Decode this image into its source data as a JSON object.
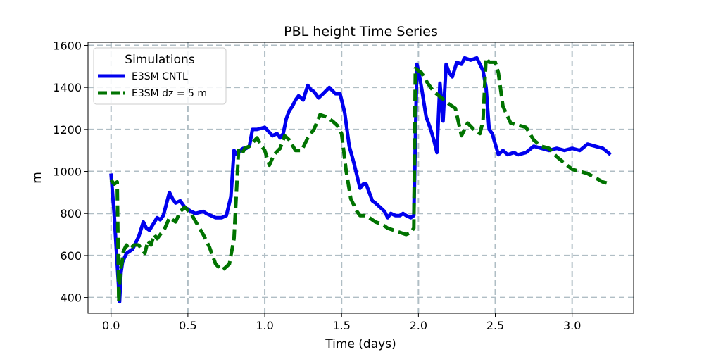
{
  "chart_data": {
    "type": "line",
    "title": "PBL height Time Series",
    "xlabel": "Time (days)",
    "ylabel": "m",
    "xlim": [
      -0.15,
      3.4
    ],
    "ylim": [
      325,
      1615
    ],
    "xticks": [
      0.0,
      0.5,
      1.0,
      1.5,
      2.0,
      2.5,
      3.0
    ],
    "xtick_labels": [
      "0.0",
      "0.5",
      "1.0",
      "1.5",
      "2.0",
      "2.5",
      "3.0"
    ],
    "yticks": [
      400,
      600,
      800,
      1000,
      1200,
      1400,
      1600
    ],
    "ytick_labels": [
      "400",
      "600",
      "800",
      "1000",
      "1200",
      "1400",
      "1600"
    ],
    "grid": true,
    "legend": {
      "title": "Simulations",
      "placement": "top-left"
    },
    "series": [
      {
        "name": "E3SM CNTL",
        "color": "#0000ee",
        "style": "solid",
        "x": [
          0.0,
          0.02,
          0.04,
          0.055,
          0.065,
          0.075,
          0.1,
          0.14,
          0.18,
          0.21,
          0.23,
          0.25,
          0.3,
          0.32,
          0.34,
          0.38,
          0.4,
          0.42,
          0.45,
          0.48,
          0.5,
          0.52,
          0.55,
          0.6,
          0.62,
          0.65,
          0.68,
          0.72,
          0.75,
          0.78,
          0.8,
          0.82,
          0.84,
          0.86,
          0.88,
          0.9,
          0.92,
          0.95,
          1.0,
          1.05,
          1.08,
          1.1,
          1.12,
          1.14,
          1.16,
          1.18,
          1.2,
          1.22,
          1.25,
          1.28,
          1.3,
          1.32,
          1.35,
          1.38,
          1.42,
          1.46,
          1.49,
          1.52,
          1.55,
          1.58,
          1.62,
          1.64,
          1.66,
          1.68,
          1.7,
          1.72,
          1.75,
          1.78,
          1.8,
          1.82,
          1.85,
          1.88,
          1.9,
          1.92,
          1.95,
          1.97,
          1.99,
          2.0,
          2.02,
          2.05,
          2.08,
          2.1,
          2.12,
          2.14,
          2.16,
          2.18,
          2.2,
          2.22,
          2.25,
          2.28,
          2.3,
          2.34,
          2.38,
          2.42,
          2.44,
          2.46,
          2.48,
          2.5,
          2.52,
          2.55,
          2.58,
          2.62,
          2.65,
          2.7,
          2.75,
          2.8,
          2.85,
          2.9,
          2.95,
          3.0,
          3.05,
          3.1,
          3.15,
          3.2,
          3.25
        ],
        "y": [
          990,
          800,
          560,
          380,
          520,
          570,
          610,
          630,
          690,
          760,
          730,
          720,
          780,
          770,
          790,
          900,
          870,
          850,
          860,
          830,
          820,
          810,
          800,
          810,
          800,
          790,
          780,
          780,
          790,
          880,
          1100,
          1080,
          1100,
          1110,
          1110,
          1120,
          1200,
          1200,
          1210,
          1170,
          1180,
          1160,
          1180,
          1250,
          1290,
          1310,
          1340,
          1360,
          1340,
          1410,
          1390,
          1380,
          1350,
          1370,
          1400,
          1370,
          1370,
          1280,
          1120,
          1040,
          920,
          940,
          940,
          900,
          860,
          850,
          830,
          810,
          780,
          800,
          790,
          790,
          800,
          790,
          780,
          790,
          1510,
          1480,
          1400,
          1260,
          1200,
          1150,
          1090,
          1420,
          1240,
          1510,
          1470,
          1450,
          1520,
          1510,
          1540,
          1530,
          1540,
          1480,
          1400,
          1200,
          1180,
          1130,
          1080,
          1100,
          1080,
          1090,
          1080,
          1090,
          1120,
          1110,
          1100,
          1110,
          1100,
          1110,
          1100,
          1130,
          1120,
          1110,
          1080
        ]
      },
      {
        "name": "E3SM dz = 5 m",
        "color": "#007300",
        "style": "dashed",
        "x": [
          0.0,
          0.02,
          0.04,
          0.05,
          0.06,
          0.07,
          0.08,
          0.1,
          0.12,
          0.15,
          0.18,
          0.22,
          0.24,
          0.26,
          0.28,
          0.3,
          0.33,
          0.35,
          0.38,
          0.42,
          0.45,
          0.48,
          0.52,
          0.56,
          0.6,
          0.64,
          0.68,
          0.72,
          0.74,
          0.77,
          0.8,
          0.83,
          0.85,
          0.87,
          0.9,
          0.95,
          0.98,
          1.0,
          1.03,
          1.06,
          1.1,
          1.13,
          1.16,
          1.2,
          1.24,
          1.28,
          1.32,
          1.36,
          1.4,
          1.44,
          1.47,
          1.5,
          1.53,
          1.56,
          1.6,
          1.62,
          1.65,
          1.68,
          1.72,
          1.76,
          1.8,
          1.84,
          1.88,
          1.92,
          1.95,
          1.97,
          1.98,
          2.02,
          2.06,
          2.1,
          2.15,
          2.2,
          2.24,
          2.28,
          2.32,
          2.36,
          2.4,
          2.42,
          2.44,
          2.46,
          2.48,
          2.5,
          2.52,
          2.55,
          2.6,
          2.65,
          2.7,
          2.75,
          2.8,
          2.85,
          2.9,
          2.95,
          3.0,
          3.05,
          3.1,
          3.15,
          3.2,
          3.25
        ],
        "y": [
          960,
          940,
          950,
          380,
          530,
          560,
          620,
          650,
          630,
          650,
          650,
          610,
          670,
          650,
          700,
          680,
          710,
          730,
          780,
          760,
          810,
          830,
          800,
          750,
          700,
          640,
          560,
          530,
          540,
          560,
          680,
          1100,
          1080,
          1110,
          1120,
          1160,
          1120,
          1100,
          1030,
          1080,
          1110,
          1170,
          1150,
          1100,
          1100,
          1160,
          1200,
          1270,
          1260,
          1240,
          1220,
          1180,
          1000,
          870,
          810,
          790,
          790,
          780,
          760,
          750,
          730,
          720,
          710,
          700,
          710,
          730,
          1490,
          1470,
          1420,
          1380,
          1350,
          1320,
          1300,
          1170,
          1230,
          1200,
          1180,
          1240,
          1540,
          1520,
          1520,
          1520,
          1470,
          1310,
          1230,
          1220,
          1210,
          1150,
          1120,
          1110,
          1070,
          1040,
          1010,
          1000,
          990,
          970,
          950,
          940
        ]
      }
    ]
  }
}
